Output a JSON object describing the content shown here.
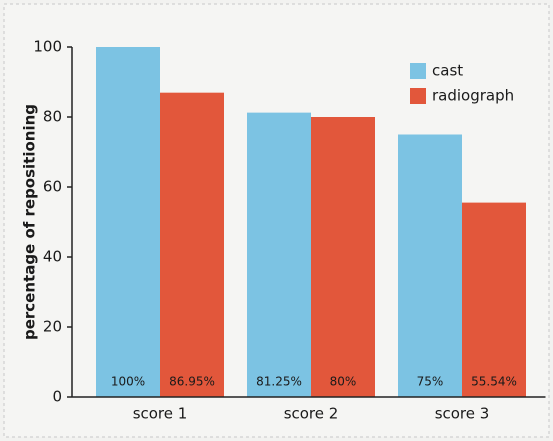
{
  "chart_data": {
    "type": "bar",
    "ylabel": "percentage of repositioning",
    "categories": [
      "score 1",
      "score 2",
      "score 3"
    ],
    "series": [
      {
        "name": "cast",
        "color": "#7cc3e3",
        "values": [
          100,
          81.25,
          75
        ],
        "value_labels": [
          "100%",
          "81.25%",
          "75%"
        ]
      },
      {
        "name": "radiograph",
        "color": "#e2573b",
        "values": [
          86.95,
          80,
          55.54
        ],
        "value_labels": [
          "86.95%",
          "80%",
          "55.54%"
        ]
      }
    ],
    "ylim": [
      0,
      100
    ],
    "yticks": [
      0,
      20,
      40,
      60,
      80,
      100
    ],
    "grid": false,
    "legend": "top-right"
  }
}
